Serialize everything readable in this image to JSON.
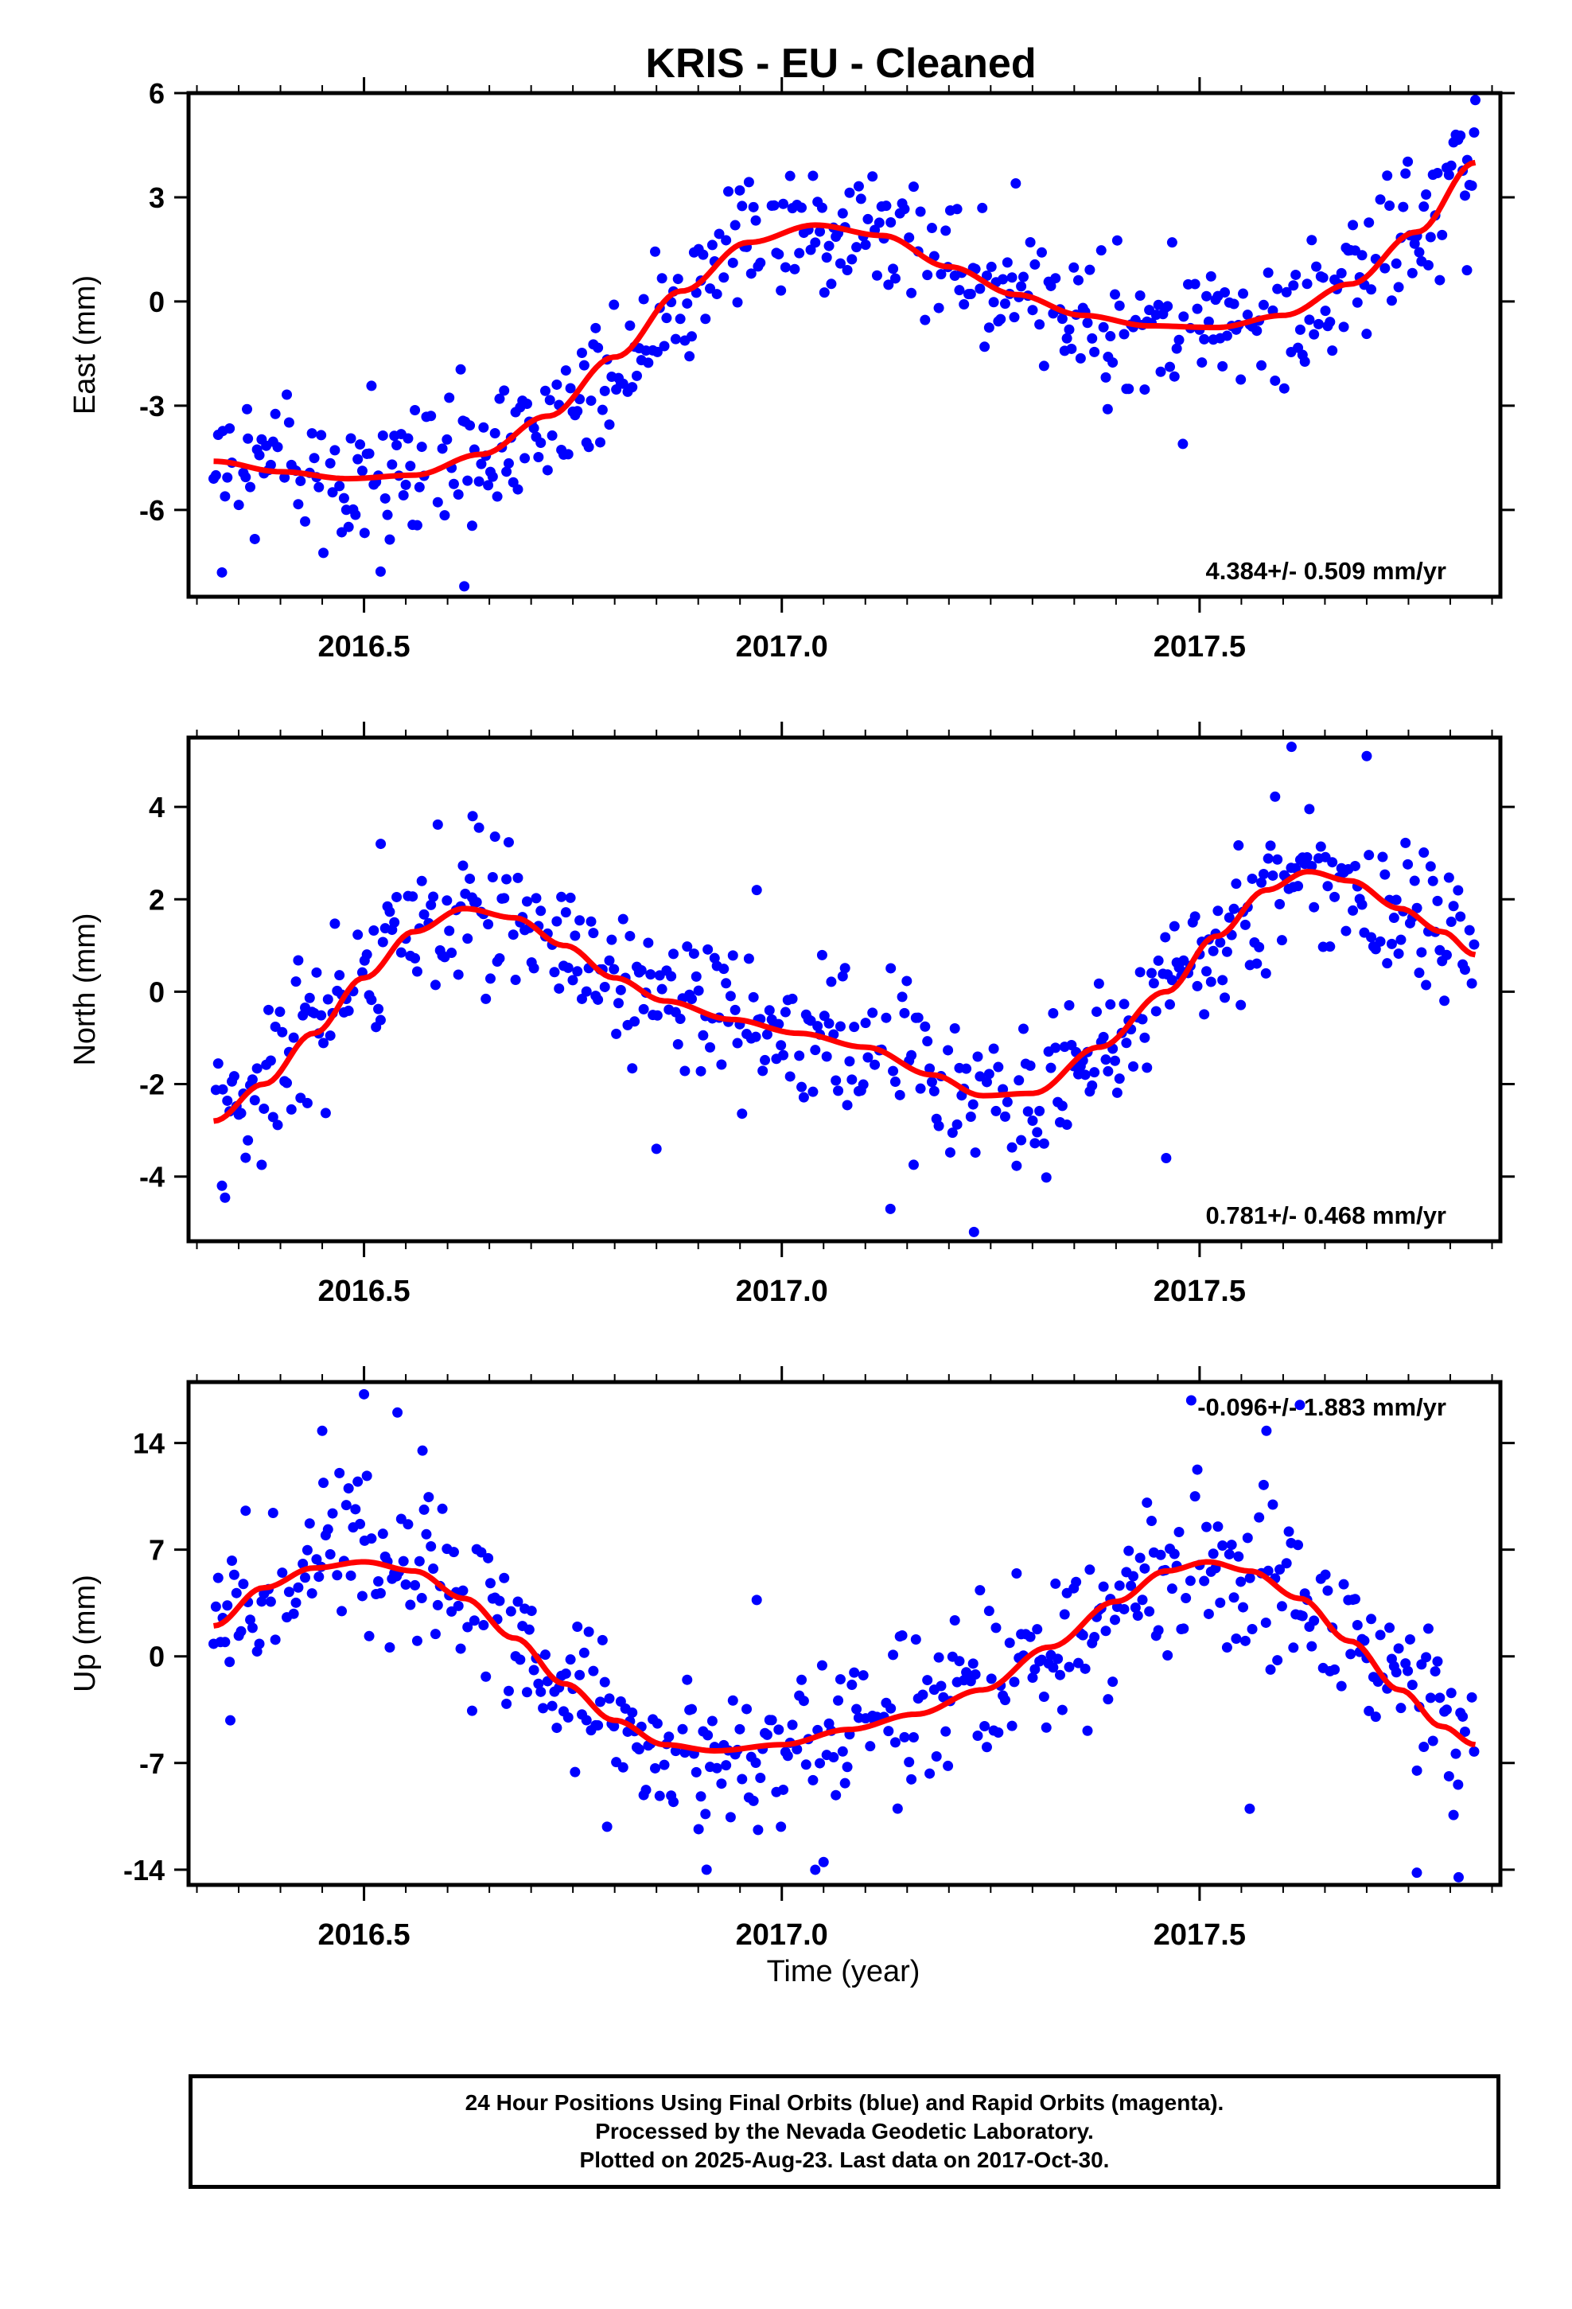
{
  "title": "KRIS  - EU - Cleaned",
  "xlabel": "Time (year)",
  "caption": [
    "24 Hour Positions Using Final Orbits (blue) and Rapid Orbits (magenta).",
    "Processed by the Nevada Geodetic Laboratory.",
    "Plotted on 2025-Aug-23. Last data on 2017-Oct-30."
  ],
  "colors": {
    "points": "#0000ff",
    "fit": "#ff0000",
    "frame": "#000000"
  },
  "chart_data": [
    {
      "type": "scatter",
      "ylabel": "East (mm)",
      "rate_label": "4.384+/- 0.509 mm/yr",
      "xlim": [
        2016.29,
        2017.86
      ],
      "ylim": [
        -8.5,
        6.0
      ],
      "x_ticks": [
        2016.5,
        2017.0,
        2017.5
      ],
      "x_tick_labels": [
        "2016.5",
        "2017.0",
        "2017.5"
      ],
      "y_ticks": [
        -6,
        -3,
        0,
        3,
        6
      ],
      "y_tick_labels": [
        "-6",
        "-3",
        "0",
        "3",
        "6"
      ],
      "x_start": 2016.32,
      "x_end": 2017.83,
      "fit_knots": [
        [
          2016.32,
          -4.6
        ],
        [
          2016.4,
          -4.9
        ],
        [
          2016.48,
          -5.1
        ],
        [
          2016.56,
          -5.0
        ],
        [
          2016.64,
          -4.4
        ],
        [
          2016.72,
          -3.3
        ],
        [
          2016.8,
          -1.6
        ],
        [
          2016.88,
          0.3
        ],
        [
          2016.96,
          1.7
        ],
        [
          2017.04,
          2.2
        ],
        [
          2017.12,
          1.9
        ],
        [
          2017.2,
          1.0
        ],
        [
          2017.28,
          0.2
        ],
        [
          2017.36,
          -0.4
        ],
        [
          2017.44,
          -0.7
        ],
        [
          2017.52,
          -0.75
        ],
        [
          2017.6,
          -0.4
        ],
        [
          2017.68,
          0.5
        ],
        [
          2017.76,
          2.0
        ],
        [
          2017.83,
          4.0
        ]
      ],
      "scatter_sd": 1.0,
      "outliers": [
        [
          2016.33,
          -7.8
        ],
        [
          2016.62,
          -8.2
        ],
        [
          2016.36,
          -3.1
        ],
        [
          2017.48,
          -4.1
        ],
        [
          2017.39,
          -3.1
        ],
        [
          2017.28,
          3.4
        ],
        [
          2017.83,
          5.8
        ],
        [
          2017.82,
          0.9
        ]
      ]
    },
    {
      "type": "scatter",
      "ylabel": "North (mm)",
      "rate_label": "0.781+/- 0.468 mm/yr",
      "xlim": [
        2016.29,
        2017.86
      ],
      "ylim": [
        -5.4,
        5.5
      ],
      "x_ticks": [
        2016.5,
        2017.0,
        2017.5
      ],
      "x_tick_labels": [
        "2016.5",
        "2017.0",
        "2017.5"
      ],
      "y_ticks": [
        -4,
        -2,
        0,
        2,
        4
      ],
      "y_tick_labels": [
        "-4",
        "-2",
        "0",
        "2",
        "4"
      ],
      "x_start": 2016.32,
      "x_end": 2017.83,
      "fit_knots": [
        [
          2016.32,
          -2.8
        ],
        [
          2016.38,
          -2.0
        ],
        [
          2016.44,
          -0.9
        ],
        [
          2016.5,
          0.3
        ],
        [
          2016.56,
          1.3
        ],
        [
          2016.62,
          1.8
        ],
        [
          2016.68,
          1.6
        ],
        [
          2016.74,
          1.0
        ],
        [
          2016.8,
          0.3
        ],
        [
          2016.86,
          -0.2
        ],
        [
          2016.94,
          -0.6
        ],
        [
          2017.02,
          -0.9
        ],
        [
          2017.1,
          -1.2
        ],
        [
          2017.18,
          -1.8
        ],
        [
          2017.24,
          -2.25
        ],
        [
          2017.3,
          -2.2
        ],
        [
          2017.38,
          -1.2
        ],
        [
          2017.46,
          0.0
        ],
        [
          2017.52,
          1.2
        ],
        [
          2017.58,
          2.2
        ],
        [
          2017.63,
          2.6
        ],
        [
          2017.68,
          2.4
        ],
        [
          2017.74,
          1.8
        ],
        [
          2017.79,
          1.3
        ],
        [
          2017.83,
          0.8
        ]
      ],
      "scatter_sd": 0.8,
      "outliers": [
        [
          2016.33,
          -4.2
        ],
        [
          2016.63,
          3.8
        ],
        [
          2016.52,
          3.2
        ],
        [
          2017.13,
          -4.7
        ],
        [
          2017.23,
          -5.2
        ],
        [
          2017.61,
          5.3
        ],
        [
          2017.7,
          5.1
        ],
        [
          2016.85,
          -3.4
        ],
        [
          2017.46,
          -3.6
        ],
        [
          2016.97,
          2.2
        ]
      ]
    },
    {
      "type": "scatter",
      "ylabel": "Up (mm)",
      "rate_label": "-0.096+/- 1.883 mm/yr",
      "xlim": [
        2016.29,
        2017.86
      ],
      "ylim": [
        -15,
        18
      ],
      "x_ticks": [
        2016.5,
        2017.0,
        2017.5
      ],
      "x_tick_labels": [
        "2016.5",
        "2017.0",
        "2017.5"
      ],
      "y_ticks": [
        -14,
        -7,
        0,
        7,
        14
      ],
      "y_tick_labels": [
        "-14",
        "-7",
        "0",
        "7",
        "14"
      ],
      "x_start": 2016.32,
      "x_end": 2017.83,
      "fit_knots": [
        [
          2016.32,
          2.0
        ],
        [
          2016.38,
          4.5
        ],
        [
          2016.44,
          5.8
        ],
        [
          2016.5,
          6.2
        ],
        [
          2016.56,
          5.6
        ],
        [
          2016.62,
          3.8
        ],
        [
          2016.68,
          1.2
        ],
        [
          2016.74,
          -1.8
        ],
        [
          2016.8,
          -4.2
        ],
        [
          2016.86,
          -5.8
        ],
        [
          2016.92,
          -6.2
        ],
        [
          2017.0,
          -5.8
        ],
        [
          2017.08,
          -4.8
        ],
        [
          2017.16,
          -3.8
        ],
        [
          2017.24,
          -2.2
        ],
        [
          2017.32,
          0.6
        ],
        [
          2017.4,
          3.6
        ],
        [
          2017.46,
          5.6
        ],
        [
          2017.51,
          6.2
        ],
        [
          2017.56,
          5.6
        ],
        [
          2017.62,
          3.8
        ],
        [
          2017.68,
          1.0
        ],
        [
          2017.74,
          -2.2
        ],
        [
          2017.79,
          -4.6
        ],
        [
          2017.83,
          -5.8
        ]
      ],
      "scatter_sd": 2.6,
      "outliers": [
        [
          2016.5,
          17.2
        ],
        [
          2016.54,
          16.0
        ],
        [
          2016.57,
          13.5
        ],
        [
          2016.45,
          14.8
        ],
        [
          2017.58,
          14.8
        ],
        [
          2017.62,
          16.5
        ],
        [
          2017.49,
          16.8
        ],
        [
          2017.81,
          -14.5
        ],
        [
          2017.76,
          -14.2
        ],
        [
          2016.91,
          -14.0
        ],
        [
          2017.56,
          -10.0
        ],
        [
          2016.97,
          3.7
        ],
        [
          2016.34,
          -4.2
        ],
        [
          2017.05,
          -13.5
        ]
      ]
    }
  ]
}
